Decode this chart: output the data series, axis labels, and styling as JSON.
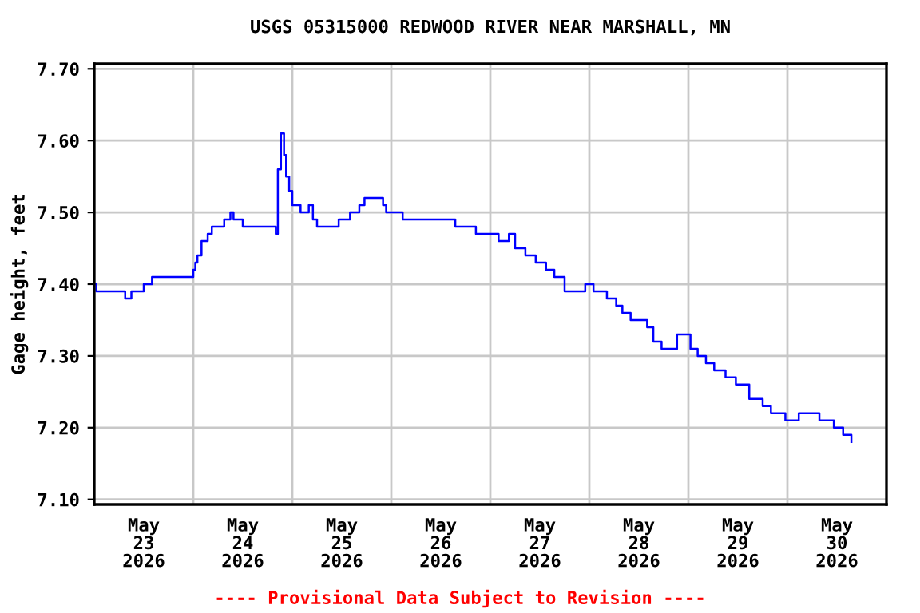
{
  "chart_data": {
    "type": "step",
    "title": "USGS 05315000 REDWOOD RIVER NEAR MARSHALL, MN",
    "ylabel": "Gage height, feet",
    "annotations": [
      "---- Provisional Data Subject to Revision ----"
    ],
    "xlim": [
      "2026-05-23T00:00",
      "2026-05-31T00:00"
    ],
    "xticks": [
      {
        "value": "2026-05-23T12:00",
        "label": "May\n23\n2026"
      },
      {
        "value": "2026-05-24T12:00",
        "label": "May\n24\n2026"
      },
      {
        "value": "2026-05-25T12:00",
        "label": "May\n25\n2026"
      },
      {
        "value": "2026-05-26T12:00",
        "label": "May\n26\n2026"
      },
      {
        "value": "2026-05-27T12:00",
        "label": "May\n27\n2026"
      },
      {
        "value": "2026-05-28T12:00",
        "label": "May\n28\n2026"
      },
      {
        "value": "2026-05-29T12:00",
        "label": "May\n29\n2026"
      },
      {
        "value": "2026-05-30T12:00",
        "label": "May\n30\n2026"
      }
    ],
    "ylim": [
      7.093,
      7.707
    ],
    "yticks": [
      {
        "value": 7.1,
        "label": "7.10"
      },
      {
        "value": 7.2,
        "label": "7.20"
      },
      {
        "value": 7.3,
        "label": "7.30"
      },
      {
        "value": 7.4,
        "label": "7.40"
      },
      {
        "value": 7.5,
        "label": "7.50"
      },
      {
        "value": 7.6,
        "label": "7.60"
      },
      {
        "value": 7.7,
        "label": "7.70"
      }
    ],
    "grid": true,
    "legend": false,
    "marker": "none",
    "line_style": "solid",
    "series": [
      {
        "color": "#0000ff",
        "x": [
          "2026-05-23T00:00",
          "2026-05-23T00:30",
          "2026-05-23T07:30",
          "2026-05-23T09:00",
          "2026-05-23T12:00",
          "2026-05-23T14:00",
          "2026-05-24T00:00",
          "2026-05-24T00:30",
          "2026-05-24T01:00",
          "2026-05-24T02:00",
          "2026-05-24T03:30",
          "2026-05-24T04:30",
          "2026-05-24T07:30",
          "2026-05-24T09:00",
          "2026-05-24T09:45",
          "2026-05-24T12:00",
          "2026-05-24T20:00",
          "2026-05-24T20:30",
          "2026-05-24T21:15",
          "2026-05-24T22:00",
          "2026-05-24T22:30",
          "2026-05-24T23:15",
          "2026-05-25T00:00",
          "2026-05-25T02:00",
          "2026-05-25T04:00",
          "2026-05-25T05:00",
          "2026-05-25T06:00",
          "2026-05-25T11:15",
          "2026-05-25T14:00",
          "2026-05-25T16:15",
          "2026-05-25T17:30",
          "2026-05-25T22:00",
          "2026-05-25T22:45",
          "2026-05-26T02:45",
          "2026-05-26T15:30",
          "2026-05-26T20:30",
          "2026-05-27T02:00",
          "2026-05-27T04:30",
          "2026-05-27T06:00",
          "2026-05-27T08:30",
          "2026-05-27T11:00",
          "2026-05-27T13:30",
          "2026-05-27T15:30",
          "2026-05-27T18:00",
          "2026-05-27T23:00",
          "2026-05-28T01:00",
          "2026-05-28T04:15",
          "2026-05-28T06:30",
          "2026-05-28T08:00",
          "2026-05-28T10:00",
          "2026-05-28T14:00",
          "2026-05-28T15:30",
          "2026-05-28T17:30",
          "2026-05-28T21:15",
          "2026-05-29T00:30",
          "2026-05-29T02:15",
          "2026-05-29T04:15",
          "2026-05-29T06:15",
          "2026-05-29T09:00",
          "2026-05-29T11:30",
          "2026-05-29T14:45",
          "2026-05-29T18:00",
          "2026-05-29T20:00",
          "2026-05-29T23:30",
          "2026-05-30T02:45",
          "2026-05-30T07:45",
          "2026-05-30T11:15",
          "2026-05-30T13:30",
          "2026-05-30T15:30"
        ],
        "values": [
          7.4,
          7.39,
          7.38,
          7.39,
          7.4,
          7.41,
          7.42,
          7.43,
          7.44,
          7.46,
          7.47,
          7.48,
          7.49,
          7.5,
          7.49,
          7.48,
          7.47,
          7.56,
          7.61,
          7.58,
          7.55,
          7.53,
          7.51,
          7.5,
          7.51,
          7.49,
          7.48,
          7.49,
          7.5,
          7.51,
          7.52,
          7.51,
          7.5,
          7.49,
          7.48,
          7.47,
          7.46,
          7.47,
          7.45,
          7.44,
          7.43,
          7.42,
          7.41,
          7.39,
          7.4,
          7.39,
          7.38,
          7.37,
          7.36,
          7.35,
          7.34,
          7.32,
          7.31,
          7.33,
          7.31,
          7.3,
          7.29,
          7.28,
          7.27,
          7.26,
          7.24,
          7.23,
          7.22,
          7.21,
          7.22,
          7.21,
          7.2,
          7.19,
          7.18
        ]
      }
    ]
  }
}
